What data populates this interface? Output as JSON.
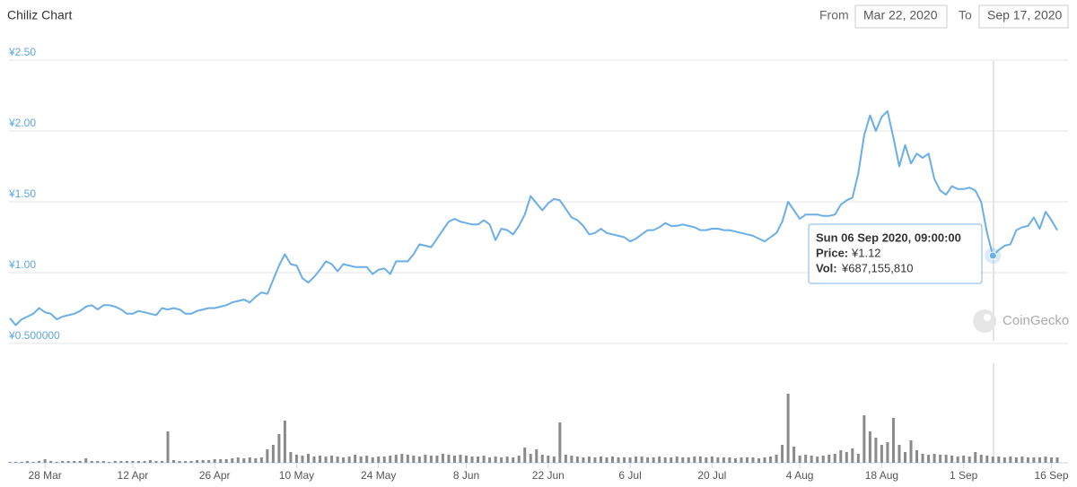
{
  "chart_data": {
    "type": "line",
    "title": "Chiliz Chart",
    "range_from_label": "From",
    "range_from": "Mar 22, 2020",
    "range_to_label": "To",
    "range_to": "Sep 17, 2020",
    "watermark": "CoinGecko",
    "categories": [
      null,
      null,
      null,
      null,
      null,
      null,
      "28 Mar",
      null,
      null,
      null,
      null,
      null,
      null,
      null,
      null,
      null,
      null,
      null,
      null,
      null,
      null,
      "12 Apr",
      null,
      null,
      null,
      null,
      null,
      null,
      null,
      null,
      null,
      null,
      null,
      null,
      null,
      "26 Apr",
      null,
      null,
      null,
      null,
      null,
      null,
      null,
      null,
      null,
      null,
      null,
      null,
      null,
      "10 May",
      null,
      null,
      null,
      null,
      null,
      null,
      null,
      null,
      null,
      null,
      null,
      null,
      null,
      "24 May",
      null,
      null,
      null,
      null,
      null,
      null,
      null,
      null,
      null,
      null,
      null,
      null,
      null,
      null,
      "8 Jun",
      null,
      null,
      null,
      null,
      null,
      null,
      null,
      null,
      null,
      null,
      null,
      null,
      null,
      "22 Jun",
      null,
      null,
      null,
      null,
      null,
      null,
      null,
      null,
      null,
      null,
      null,
      null,
      null,
      "6 Jul",
      null,
      null,
      null,
      null,
      null,
      null,
      null,
      null,
      null,
      null,
      null,
      null,
      null,
      "20 Jul",
      null,
      null,
      null,
      null,
      null,
      null,
      null,
      null,
      null,
      null,
      null,
      null,
      null,
      null,
      "4 Aug",
      null,
      null,
      null,
      null,
      null,
      null,
      null,
      null,
      null,
      null,
      null,
      null,
      null,
      "18 Aug",
      null,
      null,
      null,
      null,
      null,
      null,
      null,
      null,
      null,
      null,
      null,
      null,
      null,
      "1 Sep",
      null,
      null,
      null,
      null,
      null,
      null,
      null,
      null,
      null,
      null,
      null,
      null,
      null,
      null,
      "16 Sep",
      null
    ],
    "series": [
      {
        "color": "#6aaee8",
        "values": [
          0.68,
          0.63,
          0.67,
          0.69,
          0.71,
          0.75,
          0.72,
          0.71,
          0.67,
          0.69,
          0.7,
          0.71,
          0.73,
          0.76,
          0.77,
          0.74,
          0.77,
          0.77,
          0.76,
          0.74,
          0.71,
          0.71,
          0.73,
          0.72,
          0.71,
          0.7,
          0.75,
          0.74,
          0.75,
          0.74,
          0.71,
          0.71,
          0.73,
          0.74,
          0.75,
          0.75,
          0.76,
          0.77,
          0.79,
          0.8,
          0.81,
          0.79,
          0.83,
          0.86,
          0.85,
          0.95,
          1.05,
          1.13,
          1.06,
          1.05,
          0.96,
          0.93,
          0.97,
          1.02,
          1.08,
          1.06,
          1.01,
          1.06,
          1.05,
          1.04,
          1.04,
          1.04,
          0.99,
          1.02,
          1.03,
          0.99,
          1.08,
          1.08,
          1.08,
          1.13,
          1.2,
          1.19,
          1.18,
          1.24,
          1.3,
          1.36,
          1.38,
          1.36,
          1.35,
          1.34,
          1.34,
          1.37,
          1.34,
          1.23,
          1.31,
          1.3,
          1.27,
          1.33,
          1.41,
          1.54,
          1.49,
          1.44,
          1.49,
          1.52,
          1.51,
          1.45,
          1.39,
          1.37,
          1.33,
          1.27,
          1.28,
          1.31,
          1.28,
          1.27,
          1.26,
          1.25,
          1.22,
          1.24,
          1.27,
          1.3,
          1.3,
          1.32,
          1.35,
          1.33,
          1.33,
          1.34,
          1.33,
          1.32,
          1.3,
          1.3,
          1.31,
          1.31,
          1.3,
          1.3,
          1.29,
          1.28,
          1.27,
          1.26,
          1.24,
          1.22,
          1.25,
          1.28,
          1.36,
          1.5,
          1.44,
          1.38,
          1.41,
          1.41,
          1.41,
          1.4,
          1.4,
          1.41,
          1.48,
          1.51,
          1.53,
          1.7,
          1.97,
          2.11,
          2.0,
          2.1,
          2.14,
          1.95,
          1.75,
          1.9,
          1.77,
          1.84,
          1.81,
          1.84,
          1.66,
          1.58,
          1.55,
          1.61,
          1.59,
          1.59,
          1.6,
          1.58,
          1.5,
          1.28,
          1.12,
          1.16,
          1.19,
          1.2,
          1.3,
          1.32,
          1.33,
          1.39,
          1.31,
          1.43,
          1.37,
          1.3
        ]
      },
      {
        "color": "#8a8a8a",
        "axis": "y2",
        "values": [
          100000000.0,
          100000000.0,
          100000000.0,
          200000000.0,
          100000000.0,
          200000000.0,
          400000000.0,
          200000000.0,
          100000000.0,
          200000000.0,
          200000000.0,
          200000000.0,
          200000000.0,
          500000000.0,
          200000000.0,
          200000000.0,
          200000000.0,
          100000000.0,
          200000000.0,
          200000000.0,
          200000000.0,
          200000000.0,
          200000000.0,
          200000000.0,
          300000000.0,
          200000000.0,
          200000000.0,
          3500000000.0,
          300000000.0,
          200000000.0,
          200000000.0,
          200000000.0,
          300000000.0,
          300000000.0,
          300000000.0,
          400000000.0,
          400000000.0,
          400000000.0,
          500000000.0,
          600000000.0,
          500000000.0,
          600000000.0,
          500000000.0,
          600000000.0,
          1500000000.0,
          2000000000.0,
          3200000000.0,
          4700000000.0,
          1200000000.0,
          900000000.0,
          800000000.0,
          1000000000.0,
          700000000.0,
          800000000.0,
          700000000.0,
          800000000.0,
          700000000.0,
          600000000.0,
          700000000.0,
          900000000.0,
          700000000.0,
          800000000.0,
          600000000.0,
          700000000.0,
          700000000.0,
          800000000.0,
          900000000.0,
          1000000000.0,
          900000000.0,
          800000000.0,
          700000000.0,
          900000000.0,
          800000000.0,
          800000000.0,
          1000000000.0,
          900000000.0,
          800000000.0,
          900000000.0,
          800000000.0,
          700000000.0,
          700000000.0,
          800000000.0,
          600000000.0,
          700000000.0,
          600000000.0,
          700000000.0,
          600000000.0,
          800000000.0,
          1700000000.0,
          1000000000.0,
          1500000000.0,
          900000000.0,
          800000000.0,
          700000000.0,
          4500000000.0,
          900000000.0,
          800000000.0,
          700000000.0,
          600000000.0,
          700000000.0,
          600000000.0,
          700000000.0,
          600000000.0,
          700000000.0,
          600000000.0,
          600000000.0,
          600000000.0,
          700000000.0,
          700000000.0,
          600000000.0,
          600000000.0,
          700000000.0,
          600000000.0,
          600000000.0,
          700000000.0,
          600000000.0,
          600000000.0,
          700000000.0,
          700000000.0,
          600000000.0,
          700000000.0,
          600000000.0,
          600000000.0,
          600000000.0,
          500000000.0,
          600000000.0,
          600000000.0,
          600000000.0,
          500000000.0,
          600000000.0,
          700000000.0,
          900000000.0,
          2000000000.0,
          7700000000.0,
          1800000000.0,
          800000000.0,
          900000000.0,
          800000000.0,
          700000000.0,
          800000000.0,
          900000000.0,
          1000000000.0,
          1400000000.0,
          1200000000.0,
          1600000000.0,
          1000000000.0,
          5300000000.0,
          3500000000.0,
          2800000000.0,
          2000000000.0,
          2300000000.0,
          5000000000.0,
          2000000000.0,
          1200000000.0,
          2500000000.0,
          1400000000.0,
          1000000000.0,
          900000000.0,
          1000000000.0,
          900000000.0,
          900000000.0,
          800000000.0,
          700000000.0,
          800000000.0,
          700000000.0,
          1200000000.0,
          900000000.0,
          800000000.0,
          687155810,
          700000000.0,
          600000000.0,
          700000000.0,
          600000000.0,
          700000000.0,
          600000000.0,
          600000000.0,
          600000000.0,
          700000000.0,
          600000000.0,
          600000000.0
        ]
      }
    ],
    "ylim": [
      0.5,
      2.5
    ],
    "yticks": [
      {
        "value": 0.5,
        "label": "¥0.500000"
      },
      {
        "value": 1,
        "label": "¥1.00"
      },
      {
        "value": 1.5,
        "label": "¥1.50"
      },
      {
        "value": 2,
        "label": "¥2.00"
      },
      {
        "value": 2.5,
        "label": "¥2.50"
      }
    ],
    "y2lim": [
      0,
      8000000000
    ],
    "grid": true,
    "tooltip": {
      "date": "Sun 06 Sep 2020, 09:00:00",
      "price_label": "Price:",
      "price": "¥1.12",
      "volume_label": "Vol:",
      "volume": "¥687,155,810"
    }
  }
}
